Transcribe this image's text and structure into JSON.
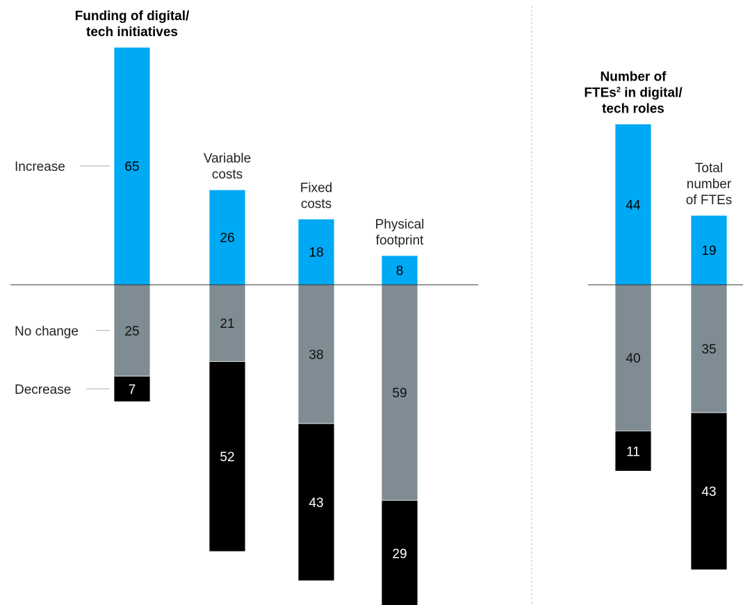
{
  "colors": {
    "increase": "#00A9F4",
    "no_change": "#7F8C93",
    "decrease": "#000000",
    "axis": "#333333",
    "divider": "#BBBBBB",
    "legend_line": "#AAAAAA"
  },
  "legend": {
    "increase": "Increase",
    "no_change": "No change",
    "decrease": "Decrease"
  },
  "chart_data": [
    {
      "type": "bar",
      "stacked": "diverging",
      "series_order": [
        "Increase",
        "No change",
        "Decrease"
      ],
      "categories": [
        {
          "label": [
            "Funding of digital/",
            "tech initiatives"
          ],
          "bold": true,
          "values": [
            65,
            25,
            7
          ]
        },
        {
          "label": [
            "Variable",
            "costs"
          ],
          "bold": false,
          "values": [
            26,
            21,
            52
          ]
        },
        {
          "label": [
            "Fixed",
            "costs"
          ],
          "bold": false,
          "values": [
            18,
            38,
            43
          ]
        },
        {
          "label": [
            "Physical",
            "footprint"
          ],
          "bold": false,
          "values": [
            8,
            59,
            29
          ]
        }
      ]
    },
    {
      "type": "bar",
      "stacked": "diverging",
      "series_order": [
        "Increase",
        "No change",
        "Decrease"
      ],
      "categories": [
        {
          "label": [
            "Number of",
            "FTEs|2| in digital/",
            "tech roles"
          ],
          "bold": true,
          "values": [
            44,
            40,
            11
          ]
        },
        {
          "label": [
            "Total",
            "number",
            "of FTEs"
          ],
          "bold": false,
          "values": [
            19,
            35,
            43
          ]
        }
      ]
    }
  ]
}
